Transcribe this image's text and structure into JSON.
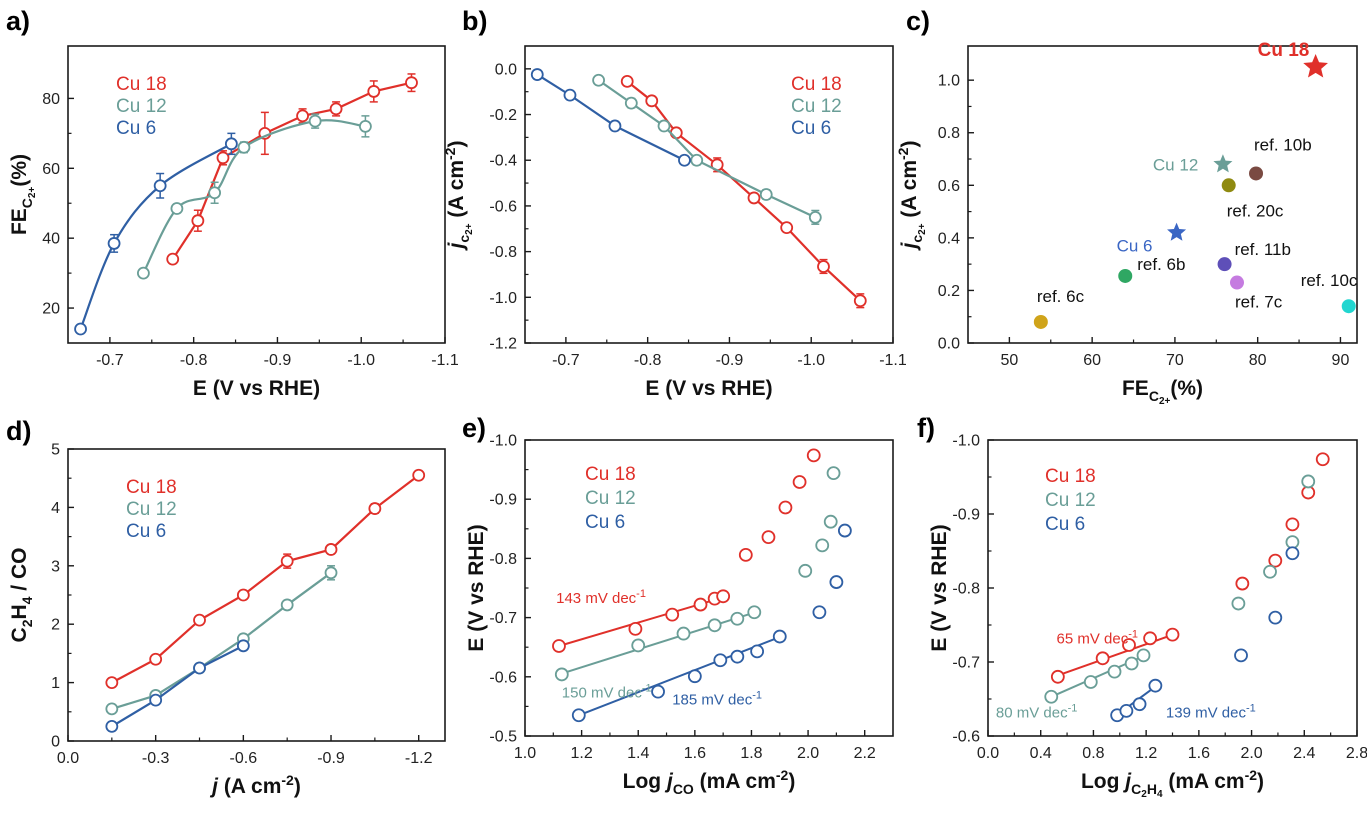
{
  "colors": {
    "cu18": "#e0302a",
    "cu12": "#6a9e97",
    "cu6": "#2f5fa4",
    "axis": "#1a1a1a"
  },
  "panels": [
    {
      "id": "a",
      "label": "a)",
      "xlabel": "E (V vs RHE)",
      "ylabel": "FE",
      "ylabel_sub": "C",
      "ylabel_sub2": "2+",
      "ylabel_tail": "(%)",
      "xlim": [
        -0.65,
        -1.1
      ],
      "ylim": [
        10,
        95
      ],
      "xticks": [
        -0.7,
        -0.8,
        -0.9,
        -1.0,
        -1.1
      ],
      "xtick_labels": [
        "-0.7",
        "-0.8",
        "-0.9",
        "-1.0",
        "-1.1"
      ],
      "yticks": [
        20,
        40,
        60,
        80
      ],
      "ytick_labels": [
        "20",
        "40",
        "60",
        "80"
      ],
      "legend": [
        "Cu 18",
        "Cu 12",
        "Cu 6"
      ],
      "chart_data": {
        "type": "line",
        "series": [
          {
            "name": "Cu 18",
            "color": "cu18",
            "smooth": false,
            "x": [
              -0.775,
              -0.805,
              -0.835,
              -0.885,
              -0.93,
              -0.97,
              -1.015,
              -1.06
            ],
            "y": [
              34,
              45,
              63,
              70,
              75,
              77,
              82,
              84.5
            ],
            "err": [
              1,
              3,
              2,
              6,
              2,
              2,
              3,
              2.5
            ]
          },
          {
            "name": "Cu 12",
            "color": "cu12",
            "smooth": true,
            "x": [
              -0.74,
              -0.78,
              -0.825,
              -0.86,
              -0.945,
              -1.005
            ],
            "y": [
              30,
              48.5,
              53,
              66,
              73.5,
              72
            ],
            "err": [
              1,
              1,
              3,
              1.5,
              2,
              3
            ]
          },
          {
            "name": "Cu 6",
            "color": "cu6",
            "smooth": true,
            "x": [
              -0.665,
              -0.705,
              -0.76,
              -0.845
            ],
            "y": [
              14,
              38.5,
              55,
              67
            ],
            "err": [
              1,
              2.5,
              3.5,
              3
            ]
          }
        ]
      }
    },
    {
      "id": "b",
      "label": "b)",
      "xlabel": "E (V vs RHE)",
      "ylabel": "j",
      "ylabel_sub": "c",
      "ylabel_sub2": "2+",
      "ylabel_tail": "(A cm",
      "ylabel_sup": "-2",
      "ylabel_end": ")",
      "xlim": [
        -0.65,
        -1.1
      ],
      "ylim": [
        -1.2,
        0.1
      ],
      "xticks": [
        -0.7,
        -0.8,
        -0.9,
        -1.0,
        -1.1
      ],
      "xtick_labels": [
        "-0.7",
        "-0.8",
        "-0.9",
        "-1.0",
        "-1.1"
      ],
      "yticks": [
        0.0,
        -0.2,
        -0.4,
        -0.6,
        -0.8,
        -1.0,
        -1.2
      ],
      "ytick_labels": [
        "0.0",
        "-0.2",
        "-0.4",
        "-0.6",
        "-0.8",
        "-1.0",
        "-1.2"
      ],
      "legend": [
        "Cu 18",
        "Cu 12",
        "Cu 6"
      ],
      "chart_data": {
        "type": "line",
        "series": [
          {
            "name": "Cu 18",
            "color": "cu18",
            "smooth": false,
            "x": [
              -0.775,
              -0.805,
              -0.835,
              -0.885,
              -0.93,
              -0.97,
              -1.015,
              -1.06
            ],
            "y": [
              -0.055,
              -0.14,
              -0.28,
              -0.42,
              -0.565,
              -0.695,
              -0.865,
              -1.015
            ],
            "err": [
              0.01,
              0.01,
              0.015,
              0.03,
              0.01,
              0.01,
              0.03,
              0.03
            ]
          },
          {
            "name": "Cu 12",
            "color": "cu12",
            "smooth": false,
            "x": [
              -0.74,
              -0.78,
              -0.82,
              -0.86,
              -0.945,
              -1.005
            ],
            "y": [
              -0.05,
              -0.15,
              -0.25,
              -0.4,
              -0.55,
              -0.65
            ],
            "err": [
              0.01,
              0.02,
              0.01,
              0.02,
              0.02,
              0.03
            ]
          },
          {
            "name": "Cu 6",
            "color": "cu6",
            "smooth": false,
            "x": [
              -0.665,
              -0.705,
              -0.76,
              -0.845
            ],
            "y": [
              -0.025,
              -0.115,
              -0.25,
              -0.4
            ],
            "err": [
              0.01,
              0.01,
              0.01,
              0.01
            ]
          }
        ]
      }
    },
    {
      "id": "c",
      "label": "c)",
      "xlabel": "FE",
      "xlabel_sub": "C",
      "xlabel_sub2": "2+",
      "xlabel_tail": "(%)",
      "ylabel": "j",
      "ylabel_sub": "c",
      "ylabel_sub2": "2+",
      "ylabel_tail": "(A cm",
      "ylabel_sup": "-2",
      "ylabel_end": ")",
      "xlim": [
        45,
        92
      ],
      "ylim": [
        0,
        1.13
      ],
      "xticks": [
        50,
        60,
        70,
        80,
        90
      ],
      "xtick_labels": [
        "50",
        "60",
        "70",
        "80",
        "90"
      ],
      "yticks": [
        0,
        0.2,
        0.4,
        0.6,
        0.8,
        1.0
      ],
      "ytick_labels": [
        "0.0",
        "0.2",
        "0.4",
        "0.6",
        "0.8",
        "1.0"
      ],
      "chart_data": {
        "type": "scatter",
        "points": [
          {
            "label": "Cu 18",
            "x": 87,
            "y": 1.05,
            "marker": "star",
            "color": "#e0302a",
            "bold": true,
            "lx": -58,
            "ly": -11,
            "lcolor": "#e0302a"
          },
          {
            "label": "Cu 12",
            "x": 75.8,
            "y": 0.68,
            "marker": "star",
            "color": "#6a9e97",
            "lx": -70,
            "ly": 6,
            "lcolor": "#6a9e97"
          },
          {
            "label": "Cu 6",
            "x": 70.2,
            "y": 0.42,
            "marker": "star",
            "color": "#3a66c4",
            "lx": -60,
            "ly": 19,
            "lcolor": "#3a66c4"
          },
          {
            "label": "ref. 10b",
            "x": 79.8,
            "y": 0.645,
            "marker": "circle",
            "color": "#7a4a42",
            "lx": -2,
            "ly": -23,
            "lcolor": "#111"
          },
          {
            "label": "ref. 20c",
            "x": 76.5,
            "y": 0.6,
            "marker": "circle",
            "color": "#8f8a10",
            "lx": -2,
            "ly": 31,
            "lcolor": "#111"
          },
          {
            "label": "ref. 11b",
            "x": 76,
            "y": 0.3,
            "marker": "circle",
            "color": "#5e4fb8",
            "lx": 10,
            "ly": -9,
            "lcolor": "#111"
          },
          {
            "label": "ref. 7c",
            "x": 77.5,
            "y": 0.23,
            "marker": "circle",
            "color": "#c57be0",
            "lx": -2,
            "ly": 25,
            "lcolor": "#111"
          },
          {
            "label": "ref. 6b",
            "x": 64,
            "y": 0.255,
            "marker": "circle",
            "color": "#2fa763",
            "lx": 12,
            "ly": -6,
            "lcolor": "#111"
          },
          {
            "label": "ref. 6c",
            "x": 53.8,
            "y": 0.08,
            "marker": "circle",
            "color": "#d0a41a",
            "lx": -4,
            "ly": -20,
            "lcolor": "#111"
          },
          {
            "label": "ref. 10c",
            "x": 91,
            "y": 0.14,
            "marker": "circle",
            "color": "#22d6d0",
            "lx": -48,
            "ly": -20,
            "lcolor": "#111"
          }
        ]
      }
    },
    {
      "id": "d",
      "label": "d)",
      "xlabel": "j",
      "xlabel_tail": "(A cm",
      "xlabel_sup": "-2",
      "xlabel_end": ")",
      "ylabel": "C",
      "ylabel_sub": "2",
      "ylabel_mid": "H",
      "ylabel_sub3": "4",
      "ylabel_tail": " / CO",
      "xlim": [
        0.0,
        -1.29
      ],
      "ylim": [
        0,
        5
      ],
      "xticks": [
        0.0,
        -0.3,
        -0.6,
        -0.9,
        -1.2
      ],
      "xtick_labels": [
        "0.0",
        "-0.3",
        "-0.6",
        "-0.9",
        "-1.2"
      ],
      "yticks": [
        0,
        1,
        2,
        3,
        4,
        5
      ],
      "ytick_labels": [
        "0",
        "1",
        "2",
        "3",
        "4",
        "5"
      ],
      "legend": [
        "Cu 18",
        "Cu 12",
        "Cu 6"
      ],
      "chart_data": {
        "type": "line",
        "series": [
          {
            "name": "Cu 18",
            "color": "cu18",
            "smooth": false,
            "x": [
              -0.15,
              -0.3,
              -0.45,
              -0.6,
              -0.75,
              -0.9,
              -1.05,
              -1.2
            ],
            "y": [
              1.0,
              1.4,
              2.07,
              2.5,
              3.08,
              3.28,
              3.98,
              4.55
            ],
            "err": [
              0.03,
              0.04,
              0.05,
              0.04,
              0.12,
              0.05,
              0.08,
              0.05
            ]
          },
          {
            "name": "Cu 12",
            "color": "cu12",
            "smooth": false,
            "x": [
              -0.15,
              -0.3,
              -0.45,
              -0.6,
              -0.75,
              -0.9
            ],
            "y": [
              0.55,
              0.78,
              1.25,
              1.75,
              2.33,
              2.88
            ],
            "err": [
              0.03,
              0.04,
              0.04,
              0.05,
              0.05,
              0.12
            ]
          },
          {
            "name": "Cu 6",
            "color": "cu6",
            "smooth": false,
            "x": [
              -0.15,
              -0.3,
              -0.45,
              -0.6
            ],
            "y": [
              0.25,
              0.7,
              1.25,
              1.63
            ],
            "err": [
              0.03,
              0.05,
              0.05,
              0.06
            ]
          }
        ]
      }
    },
    {
      "id": "e",
      "label": "e)",
      "xlabel": "Log ",
      "xlabel_j": "j",
      "xlabel_sub": "CO",
      "xlabel_tail": " (mA cm",
      "xlabel_sup": "-2",
      "xlabel_end": ")",
      "ylabel": "E (V vs RHE)",
      "xlim": [
        1.0,
        2.3
      ],
      "ylim": [
        -0.5,
        -1.0
      ],
      "xticks": [
        1.0,
        1.2,
        1.4,
        1.6,
        1.8,
        2.0,
        2.2
      ],
      "xtick_labels": [
        "1.0",
        "1.2",
        "1.4",
        "1.6",
        "1.8",
        "2.0",
        "2.2"
      ],
      "yticks": [
        -0.5,
        -0.6,
        -0.7,
        -0.8,
        -0.9,
        -1.0
      ],
      "ytick_labels": [
        "-0.5",
        "-0.6",
        "-0.7",
        "-0.8",
        "-0.9",
        "-1.0"
      ],
      "legend": [
        "Cu 18",
        "Cu 12",
        "Cu 6"
      ],
      "tafel": [
        {
          "text": "143 mV dec",
          "sup": "-1",
          "color": "cu18",
          "x": 1.11,
          "y": -0.725,
          "anchor": "start"
        },
        {
          "text": "150 mV dec",
          "sup": "-1",
          "color": "cu12",
          "x": 1.13,
          "y": -0.565,
          "anchor": "start"
        },
        {
          "text": "185 mV dec",
          "sup": "-1",
          "color": "cu6",
          "x": 1.52,
          "y": -0.553,
          "anchor": "start"
        }
      ],
      "chart_data": {
        "type": "scatter",
        "series": [
          {
            "name": "Cu 18",
            "color": "cu18",
            "x": [
              1.12,
              1.39,
              1.52,
              1.62,
              1.67,
              1.7,
              1.78,
              1.86,
              1.92,
              1.97,
              2.02
            ],
            "y": [
              -0.652,
              -0.681,
              -0.705,
              -0.722,
              -0.732,
              -0.736,
              -0.806,
              -0.836,
              -0.886,
              -0.929,
              -0.974
            ],
            "fit": [
              [
                1.12,
                -0.652
              ],
              [
                1.72,
                -0.737
              ]
            ],
            "fit_n": 6
          },
          {
            "name": "Cu 12",
            "color": "cu12",
            "x": [
              1.13,
              1.4,
              1.56,
              1.67,
              1.75,
              1.81,
              1.99,
              2.05,
              2.08,
              2.09
            ],
            "y": [
              -0.604,
              -0.653,
              -0.673,
              -0.687,
              -0.698,
              -0.709,
              -0.779,
              -0.822,
              -0.862,
              -0.944
            ],
            "fit": [
              [
                1.12,
                -0.604
              ],
              [
                1.82,
                -0.71
              ]
            ],
            "fit_n": 6
          },
          {
            "name": "Cu 6",
            "color": "cu6",
            "x": [
              1.19,
              1.47,
              1.6,
              1.69,
              1.75,
              1.82,
              1.9,
              2.04,
              2.1,
              2.13
            ],
            "y": [
              -0.535,
              -0.575,
              -0.601,
              -0.628,
              -0.634,
              -0.643,
              -0.668,
              -0.709,
              -0.76,
              -0.847
            ],
            "fit": [
              [
                1.19,
                -0.535
              ],
              [
                1.91,
                -0.669
              ]
            ],
            "fit_n": 7
          }
        ]
      }
    },
    {
      "id": "f",
      "label": "f)",
      "xlabel": "Log ",
      "xlabel_j": "j",
      "xlabel_sub": "C",
      "xlabel_sub2": "2",
      "xlabel_mid": "H",
      "xlabel_sub3": "4",
      "xlabel_tail": " (mA cm",
      "xlabel_sup": "-2",
      "xlabel_end": ")",
      "ylabel": "E (V vs RHE)",
      "xlim": [
        0.0,
        2.8
      ],
      "ylim": [
        -0.6,
        -1.0
      ],
      "xticks": [
        0.0,
        0.4,
        0.8,
        1.2,
        1.6,
        2.0,
        2.4,
        2.8
      ],
      "xtick_labels": [
        "0.0",
        "0.4",
        "0.8",
        "1.2",
        "1.6",
        "2.0",
        "2.4",
        "2.8"
      ],
      "yticks": [
        -0.6,
        -0.7,
        -0.8,
        -0.9,
        -1.0
      ],
      "ytick_labels": [
        "-0.6",
        "-0.7",
        "-0.8",
        "-0.9",
        "-1.0"
      ],
      "legend": [
        "Cu 18",
        "Cu 12",
        "Cu 6"
      ],
      "tafel": [
        {
          "text": "65 mV dec",
          "sup": "-1",
          "color": "cu18",
          "x": 0.52,
          "y": -0.725,
          "anchor": "start"
        },
        {
          "text": "80 mV dec",
          "sup": "-1",
          "color": "cu12",
          "x": 0.06,
          "y": -0.625,
          "anchor": "start"
        },
        {
          "text": "139 mV dec",
          "sup": "-1",
          "color": "cu6",
          "x": 1.35,
          "y": -0.625,
          "anchor": "start"
        }
      ],
      "chart_data": {
        "type": "scatter",
        "series": [
          {
            "name": "Cu 18",
            "color": "cu18",
            "x": [
              0.53,
              0.87,
              1.07,
              1.23,
              1.4,
              1.93,
              2.18,
              2.31,
              2.43,
              2.54
            ],
            "y": [
              -0.68,
              -0.705,
              -0.723,
              -0.732,
              -0.737,
              -0.806,
              -0.837,
              -0.886,
              -0.929,
              -0.974
            ],
            "fit": [
              [
                0.5,
                -0.68
              ],
              [
                1.42,
                -0.738
              ]
            ],
            "fit_n": 5
          },
          {
            "name": "Cu 12",
            "color": "cu12",
            "x": [
              0.48,
              0.78,
              0.96,
              1.09,
              1.18,
              1.9,
              2.14,
              2.31,
              2.43
            ],
            "y": [
              -0.653,
              -0.673,
              -0.687,
              -0.698,
              -0.709,
              -0.779,
              -0.822,
              -0.862,
              -0.944
            ],
            "fit": [
              [
                0.48,
                -0.653
              ],
              [
                1.22,
                -0.711
              ]
            ],
            "fit_n": 5
          },
          {
            "name": "Cu 6",
            "color": "cu6",
            "x": [
              0.98,
              1.05,
              1.15,
              1.27,
              1.92,
              2.18,
              2.31
            ],
            "y": [
              -0.628,
              -0.634,
              -0.643,
              -0.668,
              -0.709,
              -0.76,
              -0.847
            ],
            "fit": [
              [
                0.96,
                -0.626
              ],
              [
                1.28,
                -0.668
              ]
            ],
            "fit_n": 4
          }
        ]
      }
    }
  ]
}
